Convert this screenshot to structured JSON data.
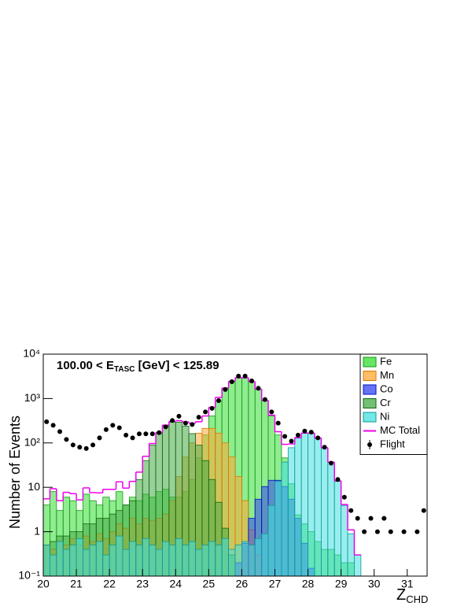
{
  "chart_data": {
    "type": "histogram",
    "annotation": [
      "100.00 < E",
      "TASC",
      " [GeV] < 125.89"
    ],
    "xlabel": [
      "Z",
      "CHD"
    ],
    "ylabel": "Number of Events",
    "log_y": true,
    "legend": "top-right",
    "xlim": [
      20,
      31.6
    ],
    "xticks": [
      20,
      21,
      22,
      23,
      24,
      25,
      26,
      27,
      28,
      29,
      30,
      31
    ],
    "ylim": [
      0.1,
      10000
    ],
    "yticks": [
      {
        "value": 0.1,
        "label": "10⁻¹"
      },
      1,
      10,
      {
        "value": 100,
        "label": "10²"
      },
      {
        "value": 1000,
        "label": "10³"
      },
      {
        "value": 10000,
        "label": "10⁴"
      }
    ],
    "bins": [
      20.0,
      20.2,
      20.4,
      20.6,
      20.8,
      21.0,
      21.2,
      21.4,
      21.6,
      21.8,
      22.0,
      22.2,
      22.4,
      22.6,
      22.8,
      23.0,
      23.2,
      23.4,
      23.6,
      23.8,
      24.0,
      24.2,
      24.4,
      24.6,
      24.8,
      25.0,
      25.2,
      25.4,
      25.6,
      25.8,
      26.0,
      26.2,
      26.4,
      26.6,
      26.8,
      27.0,
      27.2,
      27.4,
      27.6,
      27.8,
      28.0,
      28.2,
      28.4,
      28.6,
      28.8,
      29.0,
      29.2,
      29.4,
      29.6,
      29.8,
      30.0,
      30.2,
      30.4,
      30.6,
      30.8,
      31.0,
      31.2,
      31.4,
      31.6
    ],
    "series": [
      {
        "name": "Fe",
        "style": "filled",
        "color": "#33dd33",
        "edge": "#119911",
        "values": [
          4,
          8,
          3,
          6,
          5,
          3,
          7,
          5,
          4,
          6,
          5,
          8,
          4,
          6,
          5,
          7,
          6,
          8,
          9,
          6,
          6,
          8,
          15,
          46,
          151,
          405,
          890,
          1620,
          2400,
          2930,
          2930,
          2400,
          1620,
          890,
          405,
          151,
          46,
          12,
          2.4,
          1.5,
          1,
          0.6,
          0.4,
          0.4,
          0.3,
          0.2,
          0.2,
          null,
          null,
          null,
          null,
          null,
          null,
          null,
          null,
          null,
          null,
          null
        ]
      },
      {
        "name": "Mn",
        "style": "filled",
        "color": "#ffaa33",
        "edge": "#dd7700",
        "values": [
          0.5,
          0.4,
          0.6,
          0.5,
          0.7,
          0.5,
          0.8,
          0.6,
          0.9,
          0.7,
          1,
          1.5,
          1.2,
          2,
          1.5,
          2,
          1.8,
          2,
          2.5,
          5,
          17.5,
          48,
          100,
          166,
          213,
          213,
          166,
          100,
          48,
          17.5,
          5,
          1.1,
          0.3,
          null,
          null,
          null,
          null,
          null,
          null,
          null,
          null,
          null,
          null,
          null,
          null,
          null,
          null,
          null,
          null,
          null,
          null,
          null,
          null,
          null,
          null,
          null,
          null,
          null
        ]
      },
      {
        "name": "Co",
        "style": "filled",
        "color": "#3344ee",
        "edge": "#0011cc",
        "values": [
          null,
          null,
          null,
          null,
          null,
          null,
          null,
          null,
          null,
          null,
          null,
          null,
          null,
          null,
          null,
          null,
          null,
          null,
          null,
          null,
          null,
          null,
          null,
          null,
          null,
          null,
          null,
          null,
          null,
          0.2,
          0.55,
          2,
          5.4,
          10.4,
          14.4,
          14.4,
          10.4,
          5.4,
          2,
          0.55,
          0.15,
          null,
          null,
          null,
          null,
          null,
          null,
          null,
          null,
          null,
          null,
          null,
          null,
          null,
          null,
          null,
          null,
          null
        ]
      },
      {
        "name": "Cr",
        "style": "filled",
        "color": "#44aa44",
        "edge": "#116611",
        "values": [
          0.5,
          0.6,
          0.8,
          0.8,
          1,
          1,
          1.5,
          1.5,
          2,
          2,
          2.5,
          3,
          4,
          5,
          15,
          40,
          89,
          162,
          240,
          293,
          293,
          240,
          162,
          89,
          40,
          15,
          4.6,
          1.2,
          0.3,
          null,
          null,
          null,
          null,
          null,
          null,
          null,
          null,
          null,
          null,
          null,
          null,
          null,
          null,
          null,
          null,
          null,
          null,
          null,
          null,
          null,
          null,
          null,
          null,
          null,
          null,
          null,
          null,
          null
        ]
      },
      {
        "name": "Ni",
        "style": "filled",
        "color": "#44e0e0",
        "edge": "#119999",
        "values": [
          0.5,
          0.3,
          0.6,
          0.4,
          0.5,
          0.7,
          0.4,
          0.5,
          0.6,
          0.3,
          0.5,
          0.8,
          0.4,
          0.6,
          0.5,
          0.7,
          0.5,
          0.4,
          0.6,
          0.5,
          0.7,
          0.5,
          0.6,
          0.4,
          0.5,
          0.6,
          0.5,
          0.7,
          0.4,
          0.5,
          0.6,
          0.5,
          0.7,
          0.9,
          3.9,
          13.6,
          37,
          78,
          128,
          165,
          165,
          128,
          78,
          37,
          13.6,
          3.9,
          0.9,
          0.3,
          null,
          null,
          null,
          null,
          null,
          null,
          null,
          null,
          null,
          null
        ]
      },
      {
        "name": "MC Total",
        "style": "line",
        "color": "#ee00ee",
        "values": [
          5.5,
          9.3,
          5,
          7.7,
          7.2,
          5.2,
          9.7,
          7.6,
          7.5,
          9,
          9,
          13.3,
          9.6,
          13.6,
          22,
          50,
          97,
          172,
          252,
          305,
          317,
          297,
          278,
          301,
          405,
          634,
          1061,
          1722,
          2449,
          2948,
          2936,
          2404,
          1626,
          901,
          423,
          179,
          93,
          95,
          132,
          167,
          166,
          129,
          78,
          37,
          14,
          4.1,
          1.1,
          0.3,
          null,
          null,
          null,
          null,
          null,
          null,
          null,
          null,
          null,
          null
        ]
      },
      {
        "name": "Flight",
        "style": "markers",
        "color": "#000000",
        "values": [
          300,
          250,
          180,
          120,
          90,
          80,
          75,
          90,
          130,
          200,
          250,
          220,
          150,
          130,
          160,
          160,
          160,
          170,
          230,
          320,
          400,
          280,
          260,
          380,
          500,
          600,
          900,
          1600,
          2400,
          3200,
          3200,
          2500,
          1700,
          950,
          500,
          280,
          140,
          110,
          150,
          185,
          175,
          130,
          80,
          35,
          15,
          6,
          3,
          2,
          1,
          2,
          1,
          2,
          1,
          null,
          1,
          null,
          1,
          3
        ]
      }
    ]
  }
}
